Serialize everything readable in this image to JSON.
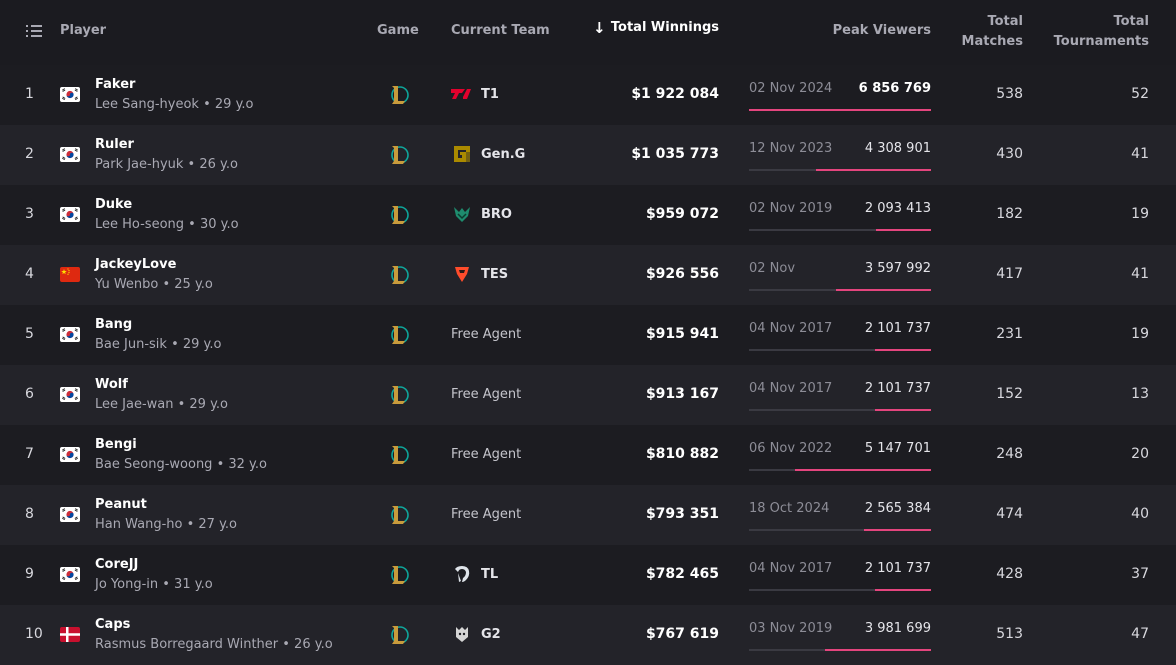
{
  "header": {
    "player": "Player",
    "game": "Game",
    "team": "Current Team",
    "sort_arrow": "↓",
    "winnings": "Total Winnings",
    "peak": "Peak Viewers",
    "matches_1": "Total",
    "matches_2": "Matches",
    "tourn_1": "Total",
    "tourn_2": "Tournaments"
  },
  "colors": {
    "accent": "#e4457e",
    "row_alt": "#232329",
    "bg": "#1c1c21"
  },
  "rows": [
    {
      "rank": "1",
      "flag": "kr",
      "name": "Faker",
      "sub": "Lee Sang-hyeok • 29 y.o",
      "game": "league-of-legends-icon",
      "team_logo": "t1",
      "team": "T1",
      "winnings": "$1 922 084",
      "peak_date": "02 Nov 2024",
      "peak_viewers": "6 856 769",
      "peak_fraction": 1.0,
      "matches": "538",
      "tournaments": "52"
    },
    {
      "rank": "2",
      "flag": "kr",
      "name": "Ruler",
      "sub": "Park Jae-hyuk • 26 y.o",
      "game": "league-of-legends-icon",
      "team_logo": "geng",
      "team": "Gen.G",
      "winnings": "$1 035 773",
      "peak_date": "12 Nov 2023",
      "peak_viewers": "4 308 901",
      "peak_fraction": 0.63,
      "matches": "430",
      "tournaments": "41"
    },
    {
      "rank": "3",
      "flag": "kr",
      "name": "Duke",
      "sub": "Lee Ho-seong • 30 y.o",
      "game": "league-of-legends-icon",
      "team_logo": "bro",
      "team": "BRO",
      "winnings": "$959 072",
      "peak_date": "02 Nov 2019",
      "peak_viewers": "2 093 413",
      "peak_fraction": 0.3,
      "matches": "182",
      "tournaments": "19"
    },
    {
      "rank": "4",
      "flag": "cn",
      "name": "JackeyLove",
      "sub": "Yu Wenbo • 25 y.o",
      "game": "league-of-legends-icon",
      "team_logo": "tes",
      "team": "TES",
      "winnings": "$926 556",
      "peak_date": "02 Nov",
      "peak_viewers": "3 597 992",
      "peak_fraction": 0.52,
      "matches": "417",
      "tournaments": "41"
    },
    {
      "rank": "5",
      "flag": "kr",
      "name": "Bang",
      "sub": "Bae Jun-sik • 29 y.o",
      "game": "league-of-legends-icon",
      "team_logo": "",
      "team": "Free Agent",
      "winnings": "$915 941",
      "peak_date": "04 Nov 2017",
      "peak_viewers": "2 101 737",
      "peak_fraction": 0.31,
      "matches": "231",
      "tournaments": "19"
    },
    {
      "rank": "6",
      "flag": "kr",
      "name": "Wolf",
      "sub": "Lee Jae-wan • 29 y.o",
      "game": "league-of-legends-icon",
      "team_logo": "",
      "team": "Free Agent",
      "winnings": "$913 167",
      "peak_date": "04 Nov 2017",
      "peak_viewers": "2 101 737",
      "peak_fraction": 0.31,
      "matches": "152",
      "tournaments": "13"
    },
    {
      "rank": "7",
      "flag": "kr",
      "name": "Bengi",
      "sub": "Bae Seong-woong • 32 y.o",
      "game": "league-of-legends-icon",
      "team_logo": "",
      "team": "Free Agent",
      "winnings": "$810 882",
      "peak_date": "06 Nov 2022",
      "peak_viewers": "5 147 701",
      "peak_fraction": 0.75,
      "matches": "248",
      "tournaments": "20"
    },
    {
      "rank": "8",
      "flag": "kr",
      "name": "Peanut",
      "sub": "Han Wang-ho • 27 y.o",
      "game": "league-of-legends-icon",
      "team_logo": "",
      "team": "Free Agent",
      "winnings": "$793 351",
      "peak_date": "18 Oct 2024",
      "peak_viewers": "2 565 384",
      "peak_fraction": 0.37,
      "matches": "474",
      "tournaments": "40"
    },
    {
      "rank": "9",
      "flag": "kr",
      "name": "CoreJJ",
      "sub": "Jo Yong-in • 31 y.o",
      "game": "league-of-legends-icon",
      "team_logo": "tl",
      "team": "TL",
      "winnings": "$782 465",
      "peak_date": "04 Nov 2017",
      "peak_viewers": "2 101 737",
      "peak_fraction": 0.31,
      "matches": "428",
      "tournaments": "37"
    },
    {
      "rank": "10",
      "flag": "dk",
      "name": "Caps",
      "sub": "Rasmus Borregaard Winther • 26 y.o",
      "game": "league-of-legends-icon",
      "team_logo": "g2",
      "team": "G2",
      "winnings": "$767 619",
      "peak_date": "03 Nov 2019",
      "peak_viewers": "3 981 699",
      "peak_fraction": 0.58,
      "matches": "513",
      "tournaments": "47"
    }
  ]
}
